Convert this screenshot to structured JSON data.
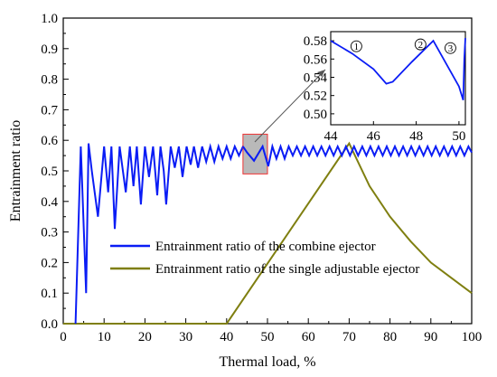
{
  "chart_data": [
    {
      "type": "line",
      "title": "",
      "xlabel": "Thermal load, %",
      "ylabel": "Entrainment ratio",
      "xlim": [
        0,
        100
      ],
      "ylim": [
        0,
        1.0
      ],
      "x_ticks": [
        "0",
        "10",
        "20",
        "30",
        "40",
        "50",
        "60",
        "70",
        "80",
        "90",
        "100"
      ],
      "y_ticks": [
        "0.0",
        "0.1",
        "0.2",
        "0.3",
        "0.4",
        "0.5",
        "0.6",
        "0.7",
        "0.8",
        "0.9",
        "1.0"
      ],
      "legend_position": "lower-center",
      "grid": false,
      "series": [
        {
          "name": "Entrainment ratio of the combine ejector",
          "color": "#0a1cf5",
          "x": [
            3.0,
            4.3,
            5.6,
            6.2,
            7.0,
            8.5,
            10.0,
            11.0,
            11.8,
            12.6,
            13.8,
            14.6,
            15.3,
            16.3,
            17.2,
            18.0,
            19.0,
            20.0,
            21.0,
            22.0,
            23.0,
            23.8,
            24.6,
            25.2,
            26.3,
            27.3,
            28.3,
            29.2,
            30.2,
            31.2,
            32.0,
            33.0,
            34.0,
            35.0,
            36.0,
            37.0,
            38.0,
            39.0,
            40.0,
            41.0,
            42.0,
            43.0,
            44.0,
            45.0,
            46.7,
            48.8,
            50.2,
            51.2,
            52.2,
            53.2,
            54.2,
            55.2,
            56.2,
            57.2,
            58.2,
            59.2,
            60.2,
            61.2,
            62.2,
            63.2,
            64.2,
            65.2,
            66.2,
            67.2,
            68.2,
            69.2,
            70.2,
            71.2,
            72.2,
            73.2,
            74.2,
            75.2,
            76.2,
            77.2,
            78.2,
            79.2,
            80.2,
            81.2,
            82.2,
            83.2,
            84.2,
            85.2,
            86.2,
            87.2,
            88.2,
            89.2,
            90.2,
            91.2,
            92.2,
            93.2,
            94.2,
            95.2,
            96.2,
            97.2,
            98.2,
            99.2,
            100.0
          ],
          "y": [
            0.0,
            0.58,
            0.1,
            0.59,
            0.5,
            0.35,
            0.58,
            0.43,
            0.58,
            0.31,
            0.58,
            0.5,
            0.43,
            0.58,
            0.45,
            0.58,
            0.39,
            0.58,
            0.48,
            0.58,
            0.42,
            0.58,
            0.5,
            0.39,
            0.58,
            0.51,
            0.58,
            0.48,
            0.58,
            0.52,
            0.58,
            0.51,
            0.58,
            0.53,
            0.58,
            0.53,
            0.58,
            0.54,
            0.58,
            0.54,
            0.58,
            0.55,
            0.58,
            0.56,
            0.533,
            0.58,
            0.515,
            0.58,
            0.54,
            0.58,
            0.54,
            0.58,
            0.55,
            0.58,
            0.55,
            0.58,
            0.55,
            0.58,
            0.55,
            0.58,
            0.55,
            0.58,
            0.55,
            0.58,
            0.55,
            0.58,
            0.55,
            0.58,
            0.55,
            0.58,
            0.55,
            0.58,
            0.55,
            0.58,
            0.55,
            0.58,
            0.55,
            0.58,
            0.55,
            0.58,
            0.55,
            0.58,
            0.55,
            0.58,
            0.55,
            0.58,
            0.55,
            0.58,
            0.55,
            0.58,
            0.55,
            0.58,
            0.55,
            0.58,
            0.55,
            0.58,
            0.56
          ]
        },
        {
          "name": "Entrainment ratio of the single adjustable ejector",
          "color": "#7f7f10",
          "x": [
            0,
            40,
            70,
            75,
            80,
            85,
            90,
            95,
            100
          ],
          "y": [
            0.0,
            0.0,
            0.59,
            0.45,
            0.35,
            0.27,
            0.2,
            0.15,
            0.1
          ]
        }
      ],
      "annotations": [
        "highlighted region x 44–50 magnified in inset"
      ]
    },
    {
      "type": "line",
      "title": "",
      "xlabel": "",
      "ylabel": "",
      "xlim": [
        44,
        50.3
      ],
      "ylim": [
        0.488,
        0.59
      ],
      "x_ticks": [
        "44",
        "46",
        "48",
        "50"
      ],
      "y_ticks": [
        "0.50",
        "0.52",
        "0.54",
        "0.56",
        "0.58"
      ],
      "markers": [
        "1",
        "2",
        "3"
      ],
      "series": [
        {
          "name": "",
          "color": "#0a1cf5",
          "x": [
            44.0,
            45.0,
            46.0,
            46.6,
            46.9,
            47.8,
            48.8,
            50.0,
            50.2,
            50.25,
            50.3
          ],
          "y": [
            0.58,
            0.566,
            0.549,
            0.533,
            0.535,
            0.557,
            0.58,
            0.53,
            0.515,
            0.56,
            0.583
          ]
        }
      ]
    }
  ]
}
